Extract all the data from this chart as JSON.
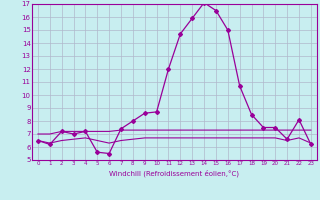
{
  "xlabel": "Windchill (Refroidissement éolien,°C)",
  "x": [
    0,
    1,
    2,
    3,
    4,
    5,
    6,
    7,
    8,
    9,
    10,
    11,
    12,
    13,
    14,
    15,
    16,
    17,
    18,
    19,
    20,
    21,
    22,
    23
  ],
  "y_main": [
    6.5,
    6.2,
    7.2,
    7.0,
    7.2,
    5.6,
    5.5,
    7.4,
    8.0,
    8.6,
    8.7,
    12.0,
    14.7,
    15.9,
    17.1,
    16.5,
    15.0,
    10.7,
    8.5,
    7.5,
    7.5,
    6.6,
    8.1,
    6.2
  ],
  "y_flat1": [
    7.0,
    7.0,
    7.2,
    7.2,
    7.2,
    7.2,
    7.2,
    7.3,
    7.3,
    7.3,
    7.3,
    7.3,
    7.3,
    7.3,
    7.3,
    7.3,
    7.3,
    7.3,
    7.3,
    7.3,
    7.3,
    7.3,
    7.3,
    7.3
  ],
  "y_flat2": [
    6.5,
    6.3,
    6.5,
    6.6,
    6.7,
    6.5,
    6.3,
    6.5,
    6.6,
    6.7,
    6.7,
    6.7,
    6.7,
    6.7,
    6.7,
    6.7,
    6.7,
    6.7,
    6.7,
    6.7,
    6.7,
    6.5,
    6.7,
    6.3
  ],
  "line_color": "#990099",
  "bg_color": "#c8eef0",
  "grid_color": "#b0b8cc",
  "ylim": [
    5,
    17
  ],
  "xlim": [
    -0.5,
    23.5
  ],
  "yticks": [
    5,
    6,
    7,
    8,
    9,
    10,
    11,
    12,
    13,
    14,
    15,
    16,
    17
  ],
  "xticks": [
    0,
    1,
    2,
    3,
    4,
    5,
    6,
    7,
    8,
    9,
    10,
    11,
    12,
    13,
    14,
    15,
    16,
    17,
    18,
    19,
    20,
    21,
    22,
    23
  ]
}
